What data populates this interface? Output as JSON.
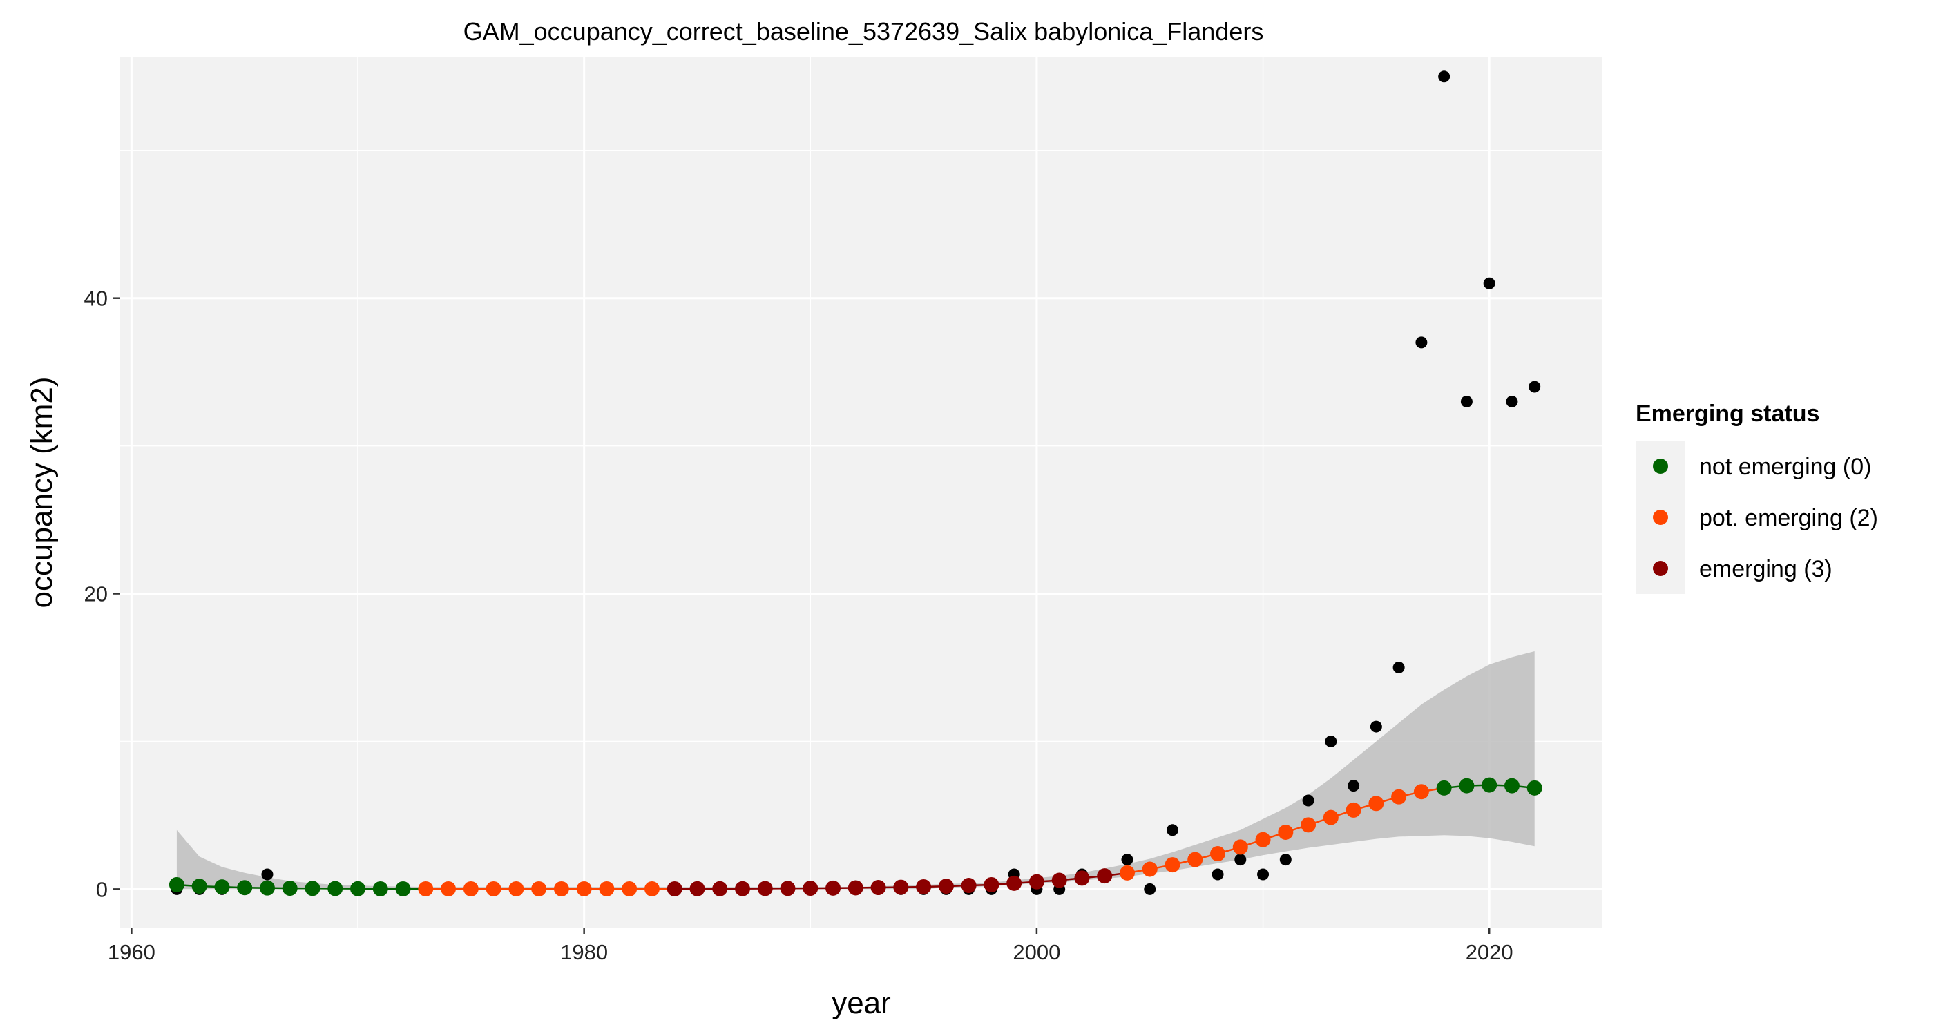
{
  "chart_data": {
    "type": "scatter",
    "title": "GAM_occupancy_correct_baseline_5372639_Salix babylonica_Flanders",
    "xlabel": "year",
    "ylabel": "occupancy (km2)",
    "xlim": [
      1959.5,
      2025
    ],
    "ylim": [
      -2.6,
      56.3
    ],
    "x_ticks": [
      1960,
      1980,
      2000,
      2020
    ],
    "y_ticks": [
      0,
      20,
      40
    ],
    "grid": true,
    "legend": {
      "title": "Emerging status",
      "position": "right",
      "entries": [
        {
          "label": "not emerging (0)",
          "color": "#006400"
        },
        {
          "label": "pot. emerging (2)",
          "color": "#FF4500"
        },
        {
          "label": "emerging (3)",
          "color": "#8B0000"
        }
      ]
    },
    "colors": {
      "panel": "#F2F2F2",
      "grid": "#FFFFFF",
      "band": "#BEBEBE",
      "observed": "#000000",
      "not_emerging": "#006400",
      "pot_emerging": "#FF4500",
      "emerging": "#8B0000"
    },
    "observed": {
      "x": [
        1962,
        1963,
        1964,
        1965,
        1966,
        1967,
        1968,
        1969,
        1970,
        1971,
        1972,
        1973,
        1974,
        1975,
        1976,
        1977,
        1978,
        1979,
        1980,
        1981,
        1982,
        1983,
        1984,
        1985,
        1986,
        1987,
        1988,
        1989,
        1990,
        1991,
        1992,
        1993,
        1994,
        1995,
        1996,
        1997,
        1998,
        1999,
        2000,
        2001,
        2002,
        2003,
        2004,
        2005,
        2006,
        2007,
        2008,
        2009,
        2010,
        2011,
        2012,
        2013,
        2014,
        2015,
        2016,
        2017,
        2018,
        2019,
        2020,
        2021,
        2022
      ],
      "y": [
        0,
        0,
        0,
        0,
        1,
        0,
        0,
        0,
        0,
        0,
        0,
        0,
        0,
        0,
        0,
        0,
        0,
        0,
        0,
        0,
        0,
        0,
        0,
        0,
        0,
        0,
        0,
        0,
        0,
        0,
        0,
        0,
        0,
        0,
        0,
        0,
        0,
        1,
        0,
        0,
        1,
        1,
        2,
        0,
        4,
        2,
        1,
        2,
        1,
        2,
        6,
        10,
        7,
        11,
        15,
        37,
        55,
        33,
        41,
        33,
        34
      ]
    },
    "fit": {
      "x": [
        1962,
        1963,
        1964,
        1965,
        1966,
        1967,
        1968,
        1969,
        1970,
        1971,
        1972,
        1973,
        1974,
        1975,
        1976,
        1977,
        1978,
        1979,
        1980,
        1981,
        1982,
        1983,
        1984,
        1985,
        1986,
        1987,
        1988,
        1989,
        1990,
        1991,
        1992,
        1993,
        1994,
        1995,
        1996,
        1997,
        1998,
        1999,
        2000,
        2001,
        2002,
        2003,
        2004,
        2005,
        2006,
        2007,
        2008,
        2009,
        2010,
        2011,
        2012,
        2013,
        2014,
        2015,
        2016,
        2017,
        2018,
        2019,
        2020,
        2021,
        2022
      ],
      "y": [
        0.3,
        0.2,
        0.15,
        0.1,
        0.08,
        0.06,
        0.05,
        0.04,
        0.03,
        0.02,
        0.02,
        0.02,
        0.02,
        0.02,
        0.02,
        0.02,
        0.02,
        0.02,
        0.02,
        0.02,
        0.02,
        0.02,
        0.02,
        0.03,
        0.03,
        0.03,
        0.04,
        0.05,
        0.06,
        0.07,
        0.09,
        0.11,
        0.13,
        0.16,
        0.2,
        0.25,
        0.3,
        0.4,
        0.5,
        0.6,
        0.75,
        0.9,
        1.1,
        1.35,
        1.65,
        2.0,
        2.4,
        2.85,
        3.35,
        3.85,
        4.35,
        4.85,
        5.35,
        5.8,
        6.25,
        6.6,
        6.85,
        7.0,
        7.05,
        7.0,
        6.85
      ],
      "status": [
        0,
        0,
        0,
        0,
        0,
        0,
        0,
        0,
        0,
        0,
        0,
        2,
        2,
        2,
        2,
        2,
        2,
        2,
        2,
        2,
        2,
        2,
        3,
        3,
        3,
        3,
        3,
        3,
        3,
        3,
        3,
        3,
        3,
        3,
        3,
        3,
        3,
        3,
        3,
        3,
        3,
        3,
        2,
        2,
        2,
        2,
        2,
        2,
        2,
        2,
        2,
        2,
        2,
        2,
        2,
        2,
        0,
        0,
        0,
        0,
        0
      ],
      "lower": [
        0,
        0,
        0,
        0,
        0,
        0,
        0,
        0,
        0,
        0,
        0,
        0,
        0,
        0,
        0,
        0,
        0,
        0,
        0,
        0,
        0,
        0,
        0,
        0,
        0,
        0,
        0,
        0,
        0,
        0,
        0,
        0,
        0,
        0,
        0.1,
        0.15,
        0.2,
        0.3,
        0.4,
        0.45,
        0.6,
        0.7,
        0.85,
        1.05,
        1.25,
        1.5,
        1.75,
        2.0,
        2.3,
        2.55,
        2.8,
        3.0,
        3.2,
        3.4,
        3.55,
        3.6,
        3.65,
        3.6,
        3.45,
        3.2,
        2.9
      ],
      "upper": [
        4,
        2.2,
        1.5,
        1.1,
        0.8,
        0.55,
        0.4,
        0.3,
        0.25,
        0.2,
        0.18,
        0.15,
        0.15,
        0.15,
        0.15,
        0.15,
        0.15,
        0.15,
        0.15,
        0.15,
        0.15,
        0.15,
        0.15,
        0.15,
        0.15,
        0.15,
        0.15,
        0.15,
        0.15,
        0.15,
        0.15,
        0.2,
        0.25,
        0.3,
        0.35,
        0.4,
        0.45,
        0.6,
        0.75,
        0.9,
        1.1,
        1.4,
        1.7,
        2.05,
        2.5,
        3.0,
        3.5,
        4.0,
        4.75,
        5.5,
        6.4,
        7.5,
        8.75,
        10.0,
        11.25,
        12.5,
        13.5,
        14.4,
        15.2,
        15.7,
        16.1
      ]
    }
  }
}
